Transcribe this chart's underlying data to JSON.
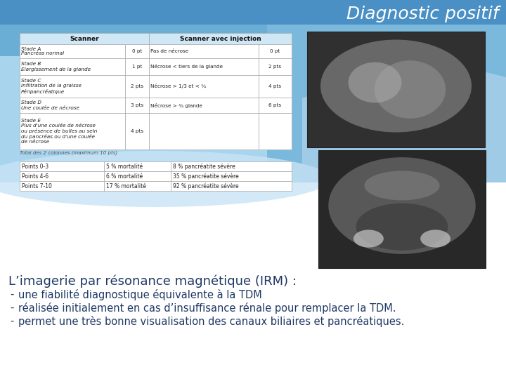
{
  "title": "Diagnostic positif",
  "title_color": "#FFFFFF",
  "title_fontsize": 18,
  "bg_top_color": "#5B9BD5",
  "bg_light_color": "#BDD7EE",
  "bg_white": "#FFFFFF",
  "table1_col_headers": [
    "Scanner",
    "Scanner avec injection"
  ],
  "table1_rows": [
    [
      "Stade A\nPancréas normal",
      "0 pt",
      "Pas de nécrose",
      "0 pt"
    ],
    [
      "Stade B\nElargissement de la glande",
      "1 pt",
      "Nécrose < tiers de la glande",
      "2 pts"
    ],
    [
      "Stade C\nInfiltration de la graisse\nPéripancréatique",
      "2 pts",
      "Nécrose > 1/3 et < ¾",
      "4 pts"
    ],
    [
      "Stade D\nUne coulée de nécrose",
      "3 pts",
      "Nécrose > ¾ glande",
      "6 pts"
    ],
    [
      "Stade E\nPlus d'une coulée de nécrose\nou présence de bulles au sein\ndu pancréas ou d'une coulée\nde nécrose",
      "4 pts",
      "",
      ""
    ]
  ],
  "table1_note": "Total des 2 colonnes (maximum 10 pts)",
  "table2_rows": [
    [
      "Points 0-3",
      "5 % mortalité",
      "8 % pancréatite sévère"
    ],
    [
      "Points 4-6",
      "6 % mortalité",
      "35 % pancréatite sévère"
    ],
    [
      "Points 7-10",
      "17 % mortalité",
      "92 % pancréatite sévère"
    ]
  ],
  "irm_title": "L’imagerie par résonance magnétique (IRM) :",
  "irm_bullets": [
    "une fiabilité diagnostique équivalente à la TDM",
    "réalisée initialement en cas d’insuffisance rénale pour remplacer la TDM.",
    "permet une très bonne visualisation des canaux biliaires et pancréatiques."
  ],
  "irm_title_fontsize": 13,
  "irm_bullet_fontsize": 10.5,
  "text_color": "#1F3864",
  "table_border_color": "#AAAAAA",
  "table_header_bg": "#D0E8F5",
  "table_cell_bg": "#FFFFFF"
}
